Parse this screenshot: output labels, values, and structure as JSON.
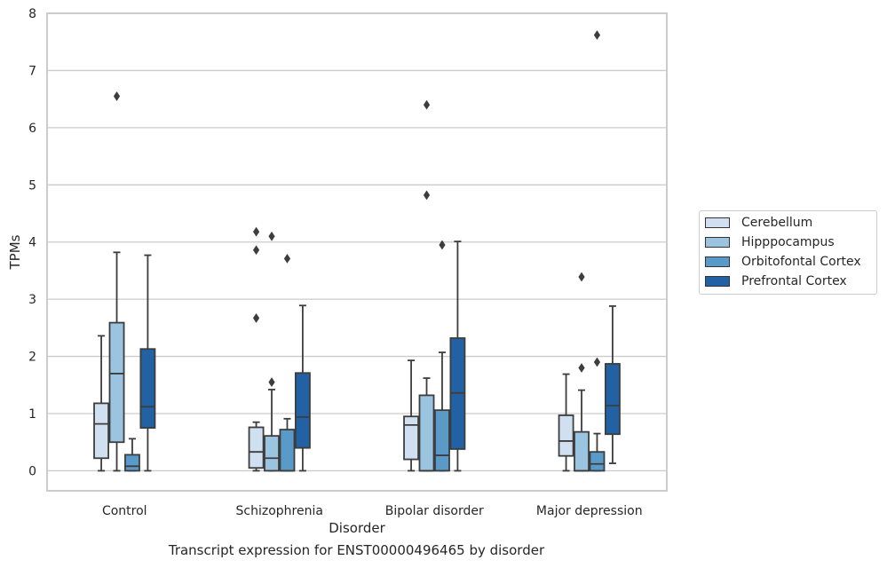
{
  "chart_data": {
    "type": "box",
    "title": "",
    "xlabel": "Disorder",
    "ylabel": "TPMs",
    "ylim": [
      -0.35,
      8.0
    ],
    "yticks": [
      0,
      1,
      2,
      3,
      4,
      5,
      6,
      7,
      8
    ],
    "grid": true,
    "legend_position": "right",
    "categories": [
      "Control",
      "Schizophrenia",
      "Bipolar disorder",
      "Major depression"
    ],
    "series": [
      {
        "name": "Cerebellum",
        "color": "#d1e0f0",
        "boxes": [
          {
            "low": 0.0,
            "q1": 0.22,
            "median": 0.82,
            "q3": 1.18,
            "high": 2.36,
            "outliers": []
          },
          {
            "low": 0.0,
            "q1": 0.05,
            "median": 0.33,
            "q3": 0.76,
            "high": 0.85,
            "outliers": [
              2.67,
              3.86,
              4.18
            ]
          },
          {
            "low": 0.0,
            "q1": 0.2,
            "median": 0.8,
            "q3": 0.95,
            "high": 1.93,
            "outliers": []
          },
          {
            "low": 0.0,
            "q1": 0.26,
            "median": 0.52,
            "q3": 0.97,
            "high": 1.69,
            "outliers": []
          }
        ]
      },
      {
        "name": "Hipppocampus",
        "color": "#9ac4e0",
        "boxes": [
          {
            "low": 0.0,
            "q1": 0.5,
            "median": 1.7,
            "q3": 2.59,
            "high": 3.82,
            "outliers": [
              6.55
            ]
          },
          {
            "low": 0.0,
            "q1": 0.0,
            "median": 0.22,
            "q3": 0.61,
            "high": 1.42,
            "outliers": [
              1.55,
              4.1
            ]
          },
          {
            "low": 0.0,
            "q1": 0.0,
            "median": 0.0,
            "q3": 1.32,
            "high": 1.62,
            "outliers": [
              4.82,
              6.4
            ]
          },
          {
            "low": 0.0,
            "q1": 0.0,
            "median": 0.0,
            "q3": 0.68,
            "high": 1.41,
            "outliers": [
              1.8,
              3.39
            ]
          }
        ]
      },
      {
        "name": "Orbitofontal Cortex",
        "color": "#5a9ac9",
        "boxes": [
          {
            "low": 0.0,
            "q1": 0.0,
            "median": 0.08,
            "q3": 0.28,
            "high": 0.56,
            "outliers": []
          },
          {
            "low": 0.0,
            "q1": 0.0,
            "median": 0.0,
            "q3": 0.72,
            "high": 0.91,
            "outliers": [
              3.71
            ]
          },
          {
            "low": 0.0,
            "q1": 0.0,
            "median": 0.27,
            "q3": 1.06,
            "high": 2.07,
            "outliers": [
              3.95
            ]
          },
          {
            "low": 0.0,
            "q1": 0.0,
            "median": 0.12,
            "q3": 0.33,
            "high": 0.65,
            "outliers": [
              1.9,
              7.62
            ]
          }
        ]
      },
      {
        "name": "Prefrontal Cortex",
        "color": "#2261a3",
        "boxes": [
          {
            "low": 0.0,
            "q1": 0.75,
            "median": 1.12,
            "q3": 2.13,
            "high": 3.77,
            "outliers": []
          },
          {
            "low": 0.0,
            "q1": 0.4,
            "median": 0.94,
            "q3": 1.71,
            "high": 2.89,
            "outliers": []
          },
          {
            "low": 0.0,
            "q1": 0.38,
            "median": 1.36,
            "q3": 2.32,
            "high": 4.01,
            "outliers": []
          },
          {
            "low": 0.13,
            "q1": 0.64,
            "median": 1.14,
            "q3": 1.87,
            "high": 2.88,
            "outliers": []
          }
        ]
      }
    ]
  },
  "caption": "Transcript expression for ENST00000496465 by disorder"
}
